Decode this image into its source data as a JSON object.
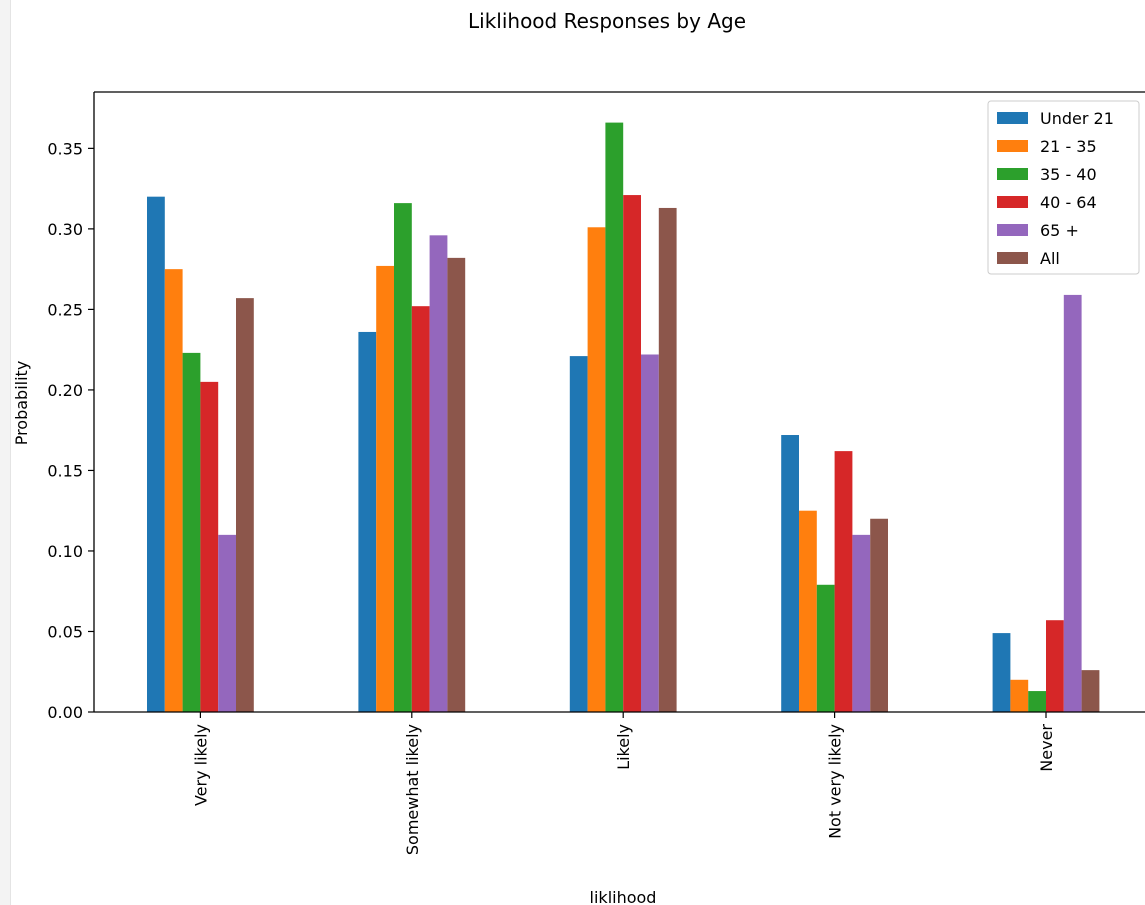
{
  "chart_data": {
    "type": "bar",
    "title": "Liklihood Responses by Age",
    "xlabel": "liklihood",
    "ylabel": "Probability",
    "ylim": [
      0,
      0.385
    ],
    "yticks": [
      0.0,
      0.05,
      0.1,
      0.15,
      0.2,
      0.25,
      0.3,
      0.35
    ],
    "ytick_labels": [
      "0.00",
      "0.05",
      "0.10",
      "0.15",
      "0.20",
      "0.25",
      "0.30",
      "0.35"
    ],
    "categories": [
      "Very likely",
      "Somewhat likely",
      "Likely",
      "Not very likely",
      "Never"
    ],
    "legend_position": "top-right",
    "grid": false,
    "series": [
      {
        "name": "Under 21",
        "color": "#1f77b4",
        "values": [
          0.32,
          0.236,
          0.221,
          0.172,
          0.049
        ]
      },
      {
        "name": "21 - 35",
        "color": "#ff7f0e",
        "values": [
          0.275,
          0.277,
          0.301,
          0.125,
          0.02
        ]
      },
      {
        "name": "35 - 40",
        "color": "#2ca02c",
        "values": [
          0.223,
          0.316,
          0.366,
          0.079,
          0.013
        ]
      },
      {
        "name": "40 - 64",
        "color": "#d62728",
        "values": [
          0.205,
          0.252,
          0.321,
          0.162,
          0.057
        ]
      },
      {
        "name": "65 +",
        "color": "#9467bd",
        "values": [
          0.11,
          0.296,
          0.222,
          0.11,
          0.259
        ]
      },
      {
        "name": "All",
        "color": "#8c564b",
        "values": [
          0.257,
          0.282,
          0.313,
          0.12,
          0.026
        ]
      }
    ]
  }
}
